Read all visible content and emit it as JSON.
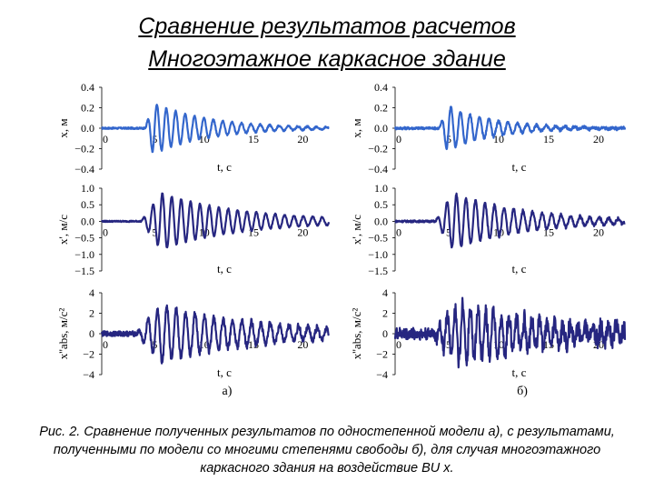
{
  "title_line1": "Сравнение результатов расчетов",
  "title_line2": "Многоэтажное каркасное здание",
  "caption": "Рис. 2. Сравнение полученных результатов по одностепенной модели а), с результатами, полученными по модели со многими степенями свободы б), для случая многоэтажного каркасного здания на воздействие BU x.",
  "panel_labels": [
    "а)",
    "б)"
  ],
  "chart_data": [
    {
      "type": "line",
      "id": "a-disp",
      "column": "а)",
      "ylabel": "x, м",
      "xlabel": "t, с",
      "xlim": [
        0,
        23
      ],
      "ylim": [
        -0.4,
        0.4
      ],
      "yticks": [
        "0.4",
        "0.2",
        "0.0",
        "−0.2",
        "−0.4"
      ],
      "ytick_values": [
        0.4,
        0.2,
        0,
        -0.2,
        -0.4
      ],
      "xticks": [
        0,
        5,
        10,
        15,
        20
      ],
      "color": "#3366cc",
      "signal": {
        "onset": 4.4,
        "amp": 0.25,
        "decay": 0.18,
        "freq": 1.05,
        "noise": 0.008,
        "peak_t": 5.2,
        "jitter": 0
      }
    },
    {
      "type": "line",
      "id": "b-disp",
      "column": "б)",
      "ylabel": "x, м",
      "xlabel": "t, с",
      "xlim": [
        0,
        23
      ],
      "ylim": [
        -0.4,
        0.4
      ],
      "yticks": [
        "0.4",
        "0.2",
        "0.0",
        "−0.2",
        "−0.4"
      ],
      "ytick_values": [
        0.4,
        0.2,
        0,
        -0.2,
        -0.4
      ],
      "xticks": [
        0,
        5,
        10,
        15,
        20
      ],
      "color": "#3366cc",
      "signal": {
        "onset": 4.4,
        "amp": 0.22,
        "decay": 0.22,
        "freq": 1.05,
        "noise": 0.012,
        "peak_t": 5.2,
        "jitter": 0.05
      }
    },
    {
      "type": "line",
      "id": "a-vel",
      "column": "а)",
      "ylabel": "x', м/с",
      "xlabel": "t, с",
      "xlim": [
        0,
        23
      ],
      "ylim": [
        -1.5,
        1.0
      ],
      "yticks": [
        "1.0",
        "0.5",
        "0.0",
        "−0.5",
        "−1.0",
        "−1.5"
      ],
      "ytick_values": [
        1,
        0.5,
        0,
        -0.5,
        -1,
        -1.5
      ],
      "xticks": [
        0,
        5,
        10,
        15,
        20
      ],
      "color": "#262680",
      "signal": {
        "onset": 4.0,
        "amp": 0.85,
        "decay": 0.12,
        "freq": 1.05,
        "noise": 0.02,
        "peak_t": 6.0,
        "jitter": 0.03
      }
    },
    {
      "type": "line",
      "id": "b-vel",
      "column": "б)",
      "ylabel": "x', м/с",
      "xlabel": "t, с",
      "xlim": [
        0,
        23
      ],
      "ylim": [
        -1.5,
        1.0
      ],
      "yticks": [
        "1.0",
        "0.5",
        "0.0",
        "−0.5",
        "−1.0",
        "−1.5"
      ],
      "ytick_values": [
        1,
        0.5,
        0,
        -0.5,
        -1,
        -1.5
      ],
      "xticks": [
        0,
        5,
        10,
        15,
        20
      ],
      "color": "#262680",
      "signal": {
        "onset": 4.0,
        "amp": 0.85,
        "decay": 0.14,
        "freq": 1.05,
        "noise": 0.03,
        "peak_t": 5.8,
        "jitter": 0.08
      }
    },
    {
      "type": "line",
      "id": "a-acc",
      "column": "а)",
      "ylabel": "x''abs, м/c²",
      "xlabel": "t, с",
      "xlim": [
        0,
        23
      ],
      "ylim": [
        -4,
        4
      ],
      "yticks": [
        "4",
        "2",
        "0",
        "−2",
        "−4"
      ],
      "ytick_values": [
        4,
        2,
        0,
        -2,
        -4
      ],
      "xticks": [
        0,
        5,
        10,
        15,
        20
      ],
      "color": "#262680",
      "signal": {
        "onset": 3.5,
        "amp": 2.8,
        "decay": 0.1,
        "freq": 1.05,
        "noise": 0.25,
        "peak_t": 6.0,
        "jitter": 0.1
      }
    },
    {
      "type": "line",
      "id": "b-acc",
      "column": "б)",
      "ylabel": "x''abs, м/c²",
      "xlabel": "t, с",
      "xlim": [
        0,
        23
      ],
      "ylim": [
        -4,
        4
      ],
      "yticks": [
        "4",
        "2",
        "0",
        "−2",
        "−4"
      ],
      "ytick_values": [
        4,
        2,
        0,
        -2,
        -4
      ],
      "xticks": [
        0,
        5,
        10,
        15,
        20
      ],
      "color": "#262680",
      "signal": {
        "onset": 3.5,
        "amp": 2.6,
        "decay": 0.1,
        "freq": 1.3,
        "noise": 0.6,
        "peak_t": 6.3,
        "jitter": 0.5
      }
    }
  ]
}
